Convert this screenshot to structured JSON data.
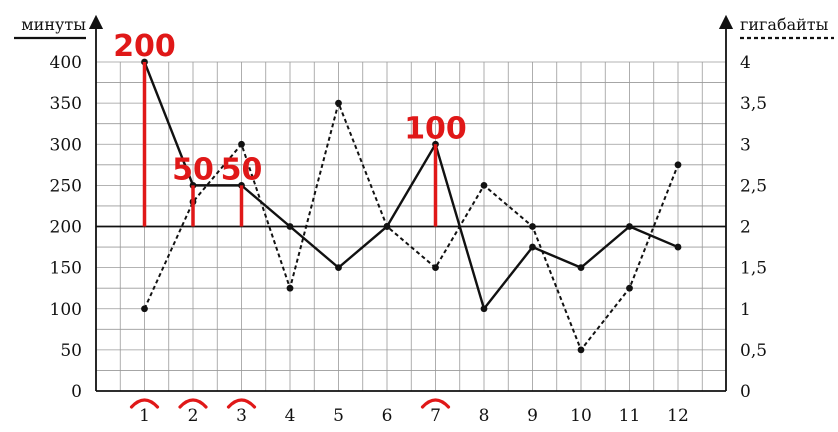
{
  "chart_data": {
    "type": "line",
    "categories": [
      "1",
      "2",
      "3",
      "4",
      "5",
      "6",
      "7",
      "8",
      "9",
      "10",
      "11",
      "12"
    ],
    "y_left": {
      "label": "минуты",
      "ticks": [
        "0",
        "50",
        "100",
        "150",
        "200",
        "250",
        "300",
        "350",
        "400"
      ],
      "range": [
        0,
        400
      ]
    },
    "y_right": {
      "label": "гигабайты",
      "ticks": [
        "0",
        "0,5",
        "1",
        "1,5",
        "2",
        "2,5",
        "3",
        "3,5",
        "4"
      ],
      "range": [
        0,
        4
      ]
    },
    "reference_line": 200,
    "series": [
      {
        "axis": "left",
        "style": "solid",
        "values": [
          400,
          250,
          250,
          200,
          150,
          200,
          300,
          100,
          175,
          150,
          200,
          175
        ]
      },
      {
        "axis": "right",
        "style": "dotted",
        "values": [
          1,
          2.3,
          3,
          1.25,
          3.5,
          2,
          1.5,
          2.5,
          2,
          0.5,
          1.25,
          2.75
        ]
      }
    ],
    "grid": true,
    "annotations": {
      "color": "#e01818",
      "labels": [
        {
          "text": "200",
          "x": 1,
          "y": 400
        },
        {
          "text": "50",
          "x": 2,
          "y": 250
        },
        {
          "text": "50",
          "x": 3,
          "y": 250
        },
        {
          "text": "100",
          "x": 7,
          "y": 300
        }
      ],
      "circled_categories": [
        1,
        2,
        3,
        7
      ]
    }
  }
}
